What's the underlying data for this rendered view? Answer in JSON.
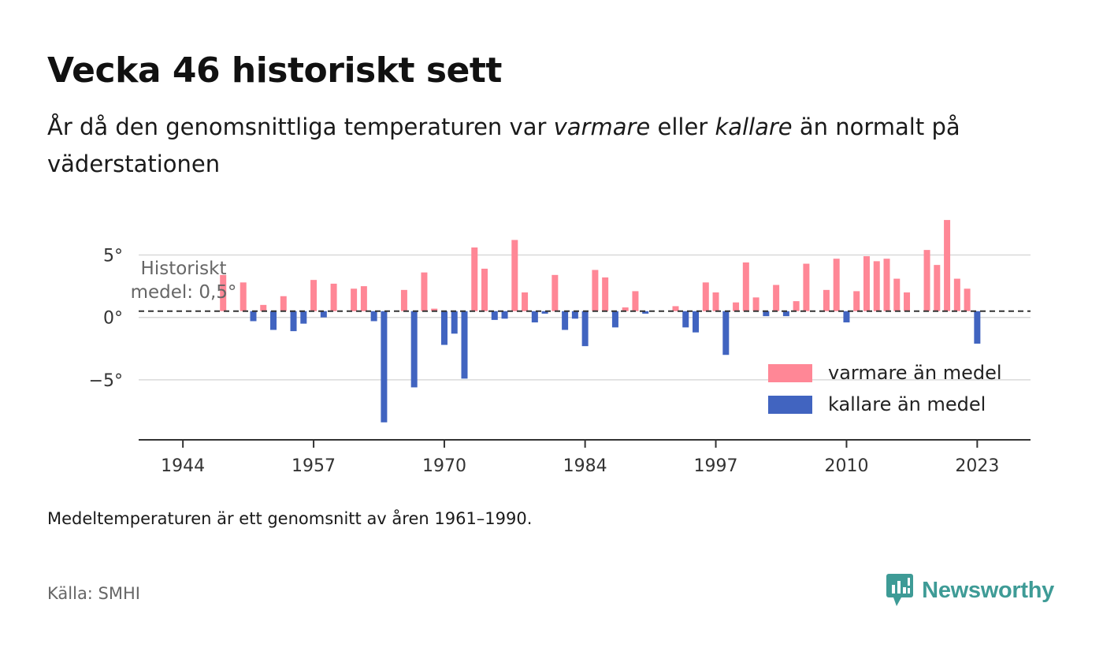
{
  "title": "Vecka 46 historiskt sett",
  "subtitle": {
    "part1": "År då den genomsnittliga temperaturen var ",
    "warm_word": "varmare",
    "part2": " eller ",
    "cold_word": "kallare",
    "part3": " än normalt på väderstationen"
  },
  "note": "Medeltemperaturen är ett genomsnitt av åren 1961–1990.",
  "source": "Källa: SMHI",
  "brand": {
    "name": "Newsworthy",
    "color": "#3e9b96",
    "icon": "newsworthy-logo-icon"
  },
  "colors": {
    "warm": "#ff8796",
    "cold": "#4164c0",
    "grid": "#d9d9d9",
    "mean_line": "#333333"
  },
  "chart_data": {
    "type": "bar",
    "mean": 0.5,
    "mean_label_lines": [
      "Historiskt",
      "medel: 0,5°"
    ],
    "ylim": [
      -9.8,
      8.5
    ],
    "yticks": [
      {
        "value": 5,
        "label": "5°"
      },
      {
        "value": 0,
        "label": "0°"
      },
      {
        "value": -5,
        "label": "−5°"
      }
    ],
    "xlim": [
      1939.6,
      2028.3
    ],
    "xticks": [
      1944,
      1957,
      1970,
      1984,
      1997,
      2010,
      2023
    ],
    "legend": {
      "position": "bottom-right",
      "warm_label": "varmare än medel",
      "cold_label": "kallare än medel"
    },
    "years": [
      1948,
      1950,
      1951,
      1952,
      1953,
      1954,
      1955,
      1956,
      1957,
      1958,
      1959,
      1961,
      1962,
      1963,
      1964,
      1966,
      1967,
      1968,
      1969,
      1970,
      1971,
      1972,
      1973,
      1974,
      1975,
      1976,
      1977,
      1978,
      1979,
      1980,
      1981,
      1982,
      1983,
      1984,
      1985,
      1986,
      1987,
      1988,
      1989,
      1990,
      1993,
      1994,
      1995,
      1996,
      1997,
      1998,
      1999,
      2000,
      2001,
      2002,
      2003,
      2004,
      2005,
      2006,
      2008,
      2009,
      2010,
      2011,
      2012,
      2013,
      2014,
      2015,
      2016,
      2018,
      2019,
      2020,
      2021,
      2022,
      2023
    ],
    "values": [
      3.4,
      2.8,
      -0.3,
      1.0,
      -1.0,
      1.7,
      -1.1,
      -0.5,
      3.0,
      0.0,
      2.7,
      2.3,
      2.5,
      -0.3,
      -8.4,
      2.2,
      -5.6,
      3.6,
      0.7,
      -2.2,
      -1.3,
      -4.9,
      5.6,
      3.9,
      -0.2,
      -0.1,
      6.2,
      2.0,
      -0.4,
      0.3,
      3.4,
      -1.0,
      -0.1,
      -2.3,
      3.8,
      3.2,
      -0.8,
      0.8,
      2.1,
      0.3,
      0.9,
      -0.8,
      -1.2,
      2.8,
      2.0,
      -3.0,
      1.2,
      4.4,
      1.6,
      0.1,
      2.6,
      0.1,
      1.3,
      4.3,
      2.2,
      4.7,
      -0.4,
      2.1,
      4.9,
      4.5,
      4.7,
      3.1,
      2.0,
      5.4,
      4.2,
      7.8,
      3.1,
      2.3,
      -2.1
    ]
  }
}
